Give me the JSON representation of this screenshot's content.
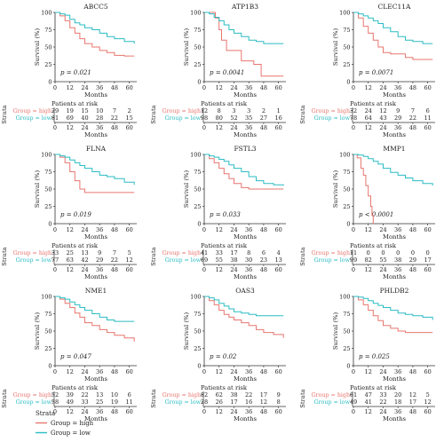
{
  "colors": {
    "high": "#e8766f",
    "low": "#2bbcc4",
    "axis": "#333333"
  },
  "labels": {
    "ylabel": "Survival (%)",
    "xlabel": "Months",
    "risk_title": "Patients at risk",
    "strata": "Strata",
    "group_high": "Group = high",
    "group_low": "Group = low"
  },
  "legend": {
    "title": "Strata",
    "items": [
      {
        "label": "Group = high",
        "color": "#e8766f"
      },
      {
        "label": "Group = low",
        "color": "#2bbcc4"
      }
    ]
  },
  "chart_data": [
    {
      "type": "line",
      "title": "ABCC5",
      "pvalue": "p = 0.021",
      "x_ticks": [
        0,
        12,
        24,
        36,
        48,
        60
      ],
      "y_ticks": [
        0,
        25,
        50,
        75,
        100
      ],
      "xlim": [
        0,
        66
      ],
      "ylim": [
        0,
        100
      ],
      "series": [
        {
          "name": "Group = high",
          "x": [
            0,
            4,
            8,
            12,
            16,
            20,
            24,
            30,
            36,
            42,
            48,
            56,
            64
          ],
          "y": [
            100,
            95,
            88,
            78,
            70,
            62,
            55,
            50,
            45,
            42,
            38,
            37,
            37
          ]
        },
        {
          "name": "Group = low",
          "x": [
            0,
            4,
            8,
            12,
            16,
            20,
            24,
            30,
            36,
            42,
            48,
            56,
            64
          ],
          "y": [
            100,
            98,
            96,
            90,
            85,
            82,
            78,
            75,
            70,
            65,
            62,
            58,
            55
          ]
        }
      ],
      "risk": {
        "high": [
          "29",
          "19",
          "15",
          "10",
          "7",
          "2"
        ],
        "low": [
          "81",
          "69",
          "40",
          "28",
          "22",
          "15"
        ]
      }
    },
    {
      "type": "line",
      "title": "ATP1B3",
      "pvalue": "p = 0.0041",
      "x_ticks": [
        0,
        12,
        24,
        36,
        48,
        60
      ],
      "y_ticks": [
        0,
        25,
        50,
        75,
        100
      ],
      "xlim": [
        0,
        66
      ],
      "ylim": [
        0,
        100
      ],
      "series": [
        {
          "name": "Group = high",
          "x": [
            0,
            6,
            9,
            12,
            14,
            18,
            24,
            30,
            36,
            40,
            46,
            52,
            64
          ],
          "y": [
            100,
            100,
            92,
            75,
            60,
            45,
            45,
            30,
            30,
            25,
            8,
            8,
            8
          ]
        },
        {
          "name": "Group = low",
          "x": [
            0,
            4,
            8,
            12,
            16,
            20,
            24,
            30,
            36,
            42,
            48,
            56,
            64
          ],
          "y": [
            100,
            98,
            93,
            88,
            82,
            75,
            70,
            65,
            60,
            58,
            55,
            55,
            55
          ]
        }
      ],
      "risk": {
        "high": [
          "12",
          "8",
          "3",
          "3",
          "2",
          "1"
        ],
        "low": [
          "98",
          "80",
          "52",
          "35",
          "27",
          "16"
        ]
      }
    },
    {
      "type": "line",
      "title": "CLEC11A",
      "pvalue": "p = 0.0071",
      "x_ticks": [
        0,
        12,
        24,
        36,
        48,
        60
      ],
      "y_ticks": [
        0,
        25,
        50,
        75,
        100
      ],
      "xlim": [
        0,
        66
      ],
      "ylim": [
        0,
        100
      ],
      "series": [
        {
          "name": "Group = high",
          "x": [
            0,
            4,
            8,
            12,
            16,
            20,
            24,
            30,
            36,
            42,
            48,
            56,
            64
          ],
          "y": [
            100,
            92,
            80,
            70,
            60,
            50,
            42,
            40,
            40,
            35,
            32,
            32,
            32
          ]
        },
        {
          "name": "Group = low",
          "x": [
            0,
            4,
            8,
            12,
            16,
            20,
            24,
            30,
            36,
            42,
            48,
            56,
            64
          ],
          "y": [
            100,
            98,
            95,
            92,
            88,
            84,
            78,
            72,
            65,
            60,
            58,
            55,
            55
          ]
        }
      ],
      "risk": {
        "high": [
          "32",
          "24",
          "12",
          "9",
          "7",
          "6"
        ],
        "low": [
          "78",
          "64",
          "43",
          "29",
          "22",
          "11"
        ]
      }
    },
    {
      "type": "line",
      "title": "FLNA",
      "pvalue": "p = 0.019",
      "x_ticks": [
        0,
        12,
        24,
        36,
        48,
        60
      ],
      "y_ticks": [
        0,
        25,
        50,
        75,
        100
      ],
      "xlim": [
        0,
        66
      ],
      "ylim": [
        0,
        100
      ],
      "series": [
        {
          "name": "Group = high",
          "x": [
            0,
            4,
            8,
            12,
            16,
            20,
            24,
            30,
            36,
            42,
            48,
            56,
            64
          ],
          "y": [
            100,
            96,
            88,
            75,
            62,
            50,
            45,
            45,
            45,
            45,
            45,
            45,
            45
          ]
        },
        {
          "name": "Group = low",
          "x": [
            0,
            4,
            8,
            12,
            16,
            20,
            24,
            30,
            36,
            42,
            48,
            56,
            64
          ],
          "y": [
            100,
            98,
            96,
            92,
            88,
            84,
            80,
            75,
            70,
            68,
            65,
            60,
            56
          ]
        }
      ],
      "risk": {
        "high": [
          "33",
          "25",
          "13",
          "9",
          "7",
          "5"
        ],
        "low": [
          "77",
          "63",
          "42",
          "29",
          "22",
          "12"
        ]
      }
    },
    {
      "type": "line",
      "title": "FSTL3",
      "pvalue": "p = 0.033",
      "x_ticks": [
        0,
        12,
        24,
        36,
        48,
        60
      ],
      "y_ticks": [
        0,
        25,
        50,
        75,
        100
      ],
      "xlim": [
        0,
        66
      ],
      "ylim": [
        0,
        100
      ],
      "series": [
        {
          "name": "Group = high",
          "x": [
            0,
            4,
            8,
            12,
            16,
            20,
            24,
            30,
            36,
            42,
            48,
            56,
            64
          ],
          "y": [
            100,
            94,
            88,
            80,
            72,
            65,
            58,
            52,
            50,
            50,
            50,
            50,
            50
          ]
        },
        {
          "name": "Group = low",
          "x": [
            0,
            4,
            8,
            12,
            16,
            20,
            24,
            30,
            36,
            42,
            48,
            56,
            64
          ],
          "y": [
            100,
            98,
            96,
            93,
            90,
            85,
            80,
            75,
            68,
            62,
            58,
            56,
            55
          ]
        }
      ],
      "risk": {
        "high": [
          "41",
          "33",
          "17",
          "8",
          "6",
          "4"
        ],
        "low": [
          "69",
          "55",
          "38",
          "30",
          "23",
          "13"
        ]
      }
    },
    {
      "type": "line",
      "title": "MMP1",
      "pvalue": "p < 0.0001",
      "x_ticks": [
        0,
        12,
        24,
        36,
        48,
        60
      ],
      "y_ticks": [
        0,
        25,
        50,
        75,
        100
      ],
      "xlim": [
        0,
        66
      ],
      "ylim": [
        0,
        100
      ],
      "series": [
        {
          "name": "Group = high",
          "x": [
            0,
            3,
            6,
            8,
            10,
            12,
            14,
            15,
            16
          ],
          "y": [
            100,
            95,
            80,
            70,
            55,
            40,
            25,
            12,
            0
          ]
        },
        {
          "name": "Group = low",
          "x": [
            0,
            4,
            8,
            12,
            16,
            20,
            24,
            30,
            36,
            42,
            48,
            56,
            64
          ],
          "y": [
            100,
            99,
            97,
            94,
            90,
            86,
            80,
            74,
            70,
            66,
            62,
            58,
            55
          ]
        }
      ],
      "risk": {
        "high": [
          "11",
          "0",
          "0",
          "0",
          "0",
          "0"
        ],
        "low": [
          "99",
          "82",
          "55",
          "38",
          "29",
          "17"
        ]
      }
    },
    {
      "type": "line",
      "title": "NME1",
      "pvalue": "p = 0.047",
      "x_ticks": [
        0,
        12,
        24,
        36,
        48,
        60
      ],
      "y_ticks": [
        0,
        25,
        50,
        75,
        100
      ],
      "xlim": [
        0,
        66
      ],
      "ylim": [
        0,
        100
      ],
      "series": [
        {
          "name": "Group = high",
          "x": [
            0,
            4,
            8,
            12,
            16,
            20,
            24,
            30,
            36,
            42,
            48,
            56,
            64
          ],
          "y": [
            100,
            96,
            90,
            84,
            76,
            70,
            62,
            58,
            52,
            48,
            44,
            40,
            35
          ]
        },
        {
          "name": "Group = low",
          "x": [
            0,
            4,
            8,
            12,
            16,
            20,
            24,
            30,
            36,
            42,
            48,
            56,
            64
          ],
          "y": [
            100,
            98,
            96,
            92,
            88,
            84,
            80,
            75,
            70,
            66,
            64,
            64,
            64
          ]
        }
      ],
      "risk": {
        "high": [
          "52",
          "39",
          "22",
          "13",
          "10",
          "6"
        ],
        "low": [
          "58",
          "49",
          "33",
          "25",
          "19",
          "11"
        ]
      }
    },
    {
      "type": "line",
      "title": "OAS3",
      "pvalue": "p = 0.02",
      "x_ticks": [
        0,
        12,
        24,
        36,
        48,
        60
      ],
      "y_ticks": [
        0,
        25,
        50,
        75,
        100
      ],
      "xlim": [
        0,
        66
      ],
      "ylim": [
        0,
        100
      ],
      "series": [
        {
          "name": "Group = high",
          "x": [
            0,
            4,
            8,
            12,
            16,
            20,
            24,
            30,
            36,
            42,
            48,
            56,
            64
          ],
          "y": [
            100,
            94,
            88,
            80,
            74,
            70,
            66,
            62,
            58,
            52,
            48,
            45,
            40
          ]
        },
        {
          "name": "Group = low",
          "x": [
            0,
            4,
            8,
            12,
            16,
            20,
            24,
            30,
            36,
            42,
            48,
            56,
            64
          ],
          "y": [
            100,
            98,
            95,
            90,
            86,
            82,
            78,
            76,
            74,
            72,
            72,
            72,
            72
          ]
        }
      ],
      "risk": {
        "high": [
          "82",
          "62",
          "38",
          "22",
          "17",
          "9"
        ],
        "low": [
          "28",
          "26",
          "17",
          "16",
          "12",
          "8"
        ]
      }
    },
    {
      "type": "line",
      "title": "PHLDB2",
      "pvalue": "p = 0.025",
      "x_ticks": [
        0,
        12,
        24,
        36,
        48,
        60
      ],
      "y_ticks": [
        0,
        25,
        50,
        75,
        100
      ],
      "xlim": [
        0,
        66
      ],
      "ylim": [
        0,
        100
      ],
      "series": [
        {
          "name": "Group = high",
          "x": [
            0,
            4,
            8,
            12,
            16,
            20,
            24,
            30,
            36,
            42,
            48,
            56,
            64
          ],
          "y": [
            100,
            95,
            88,
            80,
            72,
            65,
            58,
            54,
            50,
            48,
            48,
            48,
            48
          ]
        },
        {
          "name": "Group = low",
          "x": [
            0,
            4,
            8,
            12,
            16,
            20,
            24,
            30,
            36,
            42,
            48,
            56,
            64
          ],
          "y": [
            100,
            99,
            97,
            94,
            90,
            87,
            84,
            80,
            76,
            74,
            72,
            70,
            66
          ]
        }
      ],
      "risk": {
        "high": [
          "61",
          "47",
          "33",
          "20",
          "12",
          "5"
        ],
        "low": [
          "49",
          "41",
          "22",
          "18",
          "17",
          "12"
        ]
      }
    }
  ]
}
